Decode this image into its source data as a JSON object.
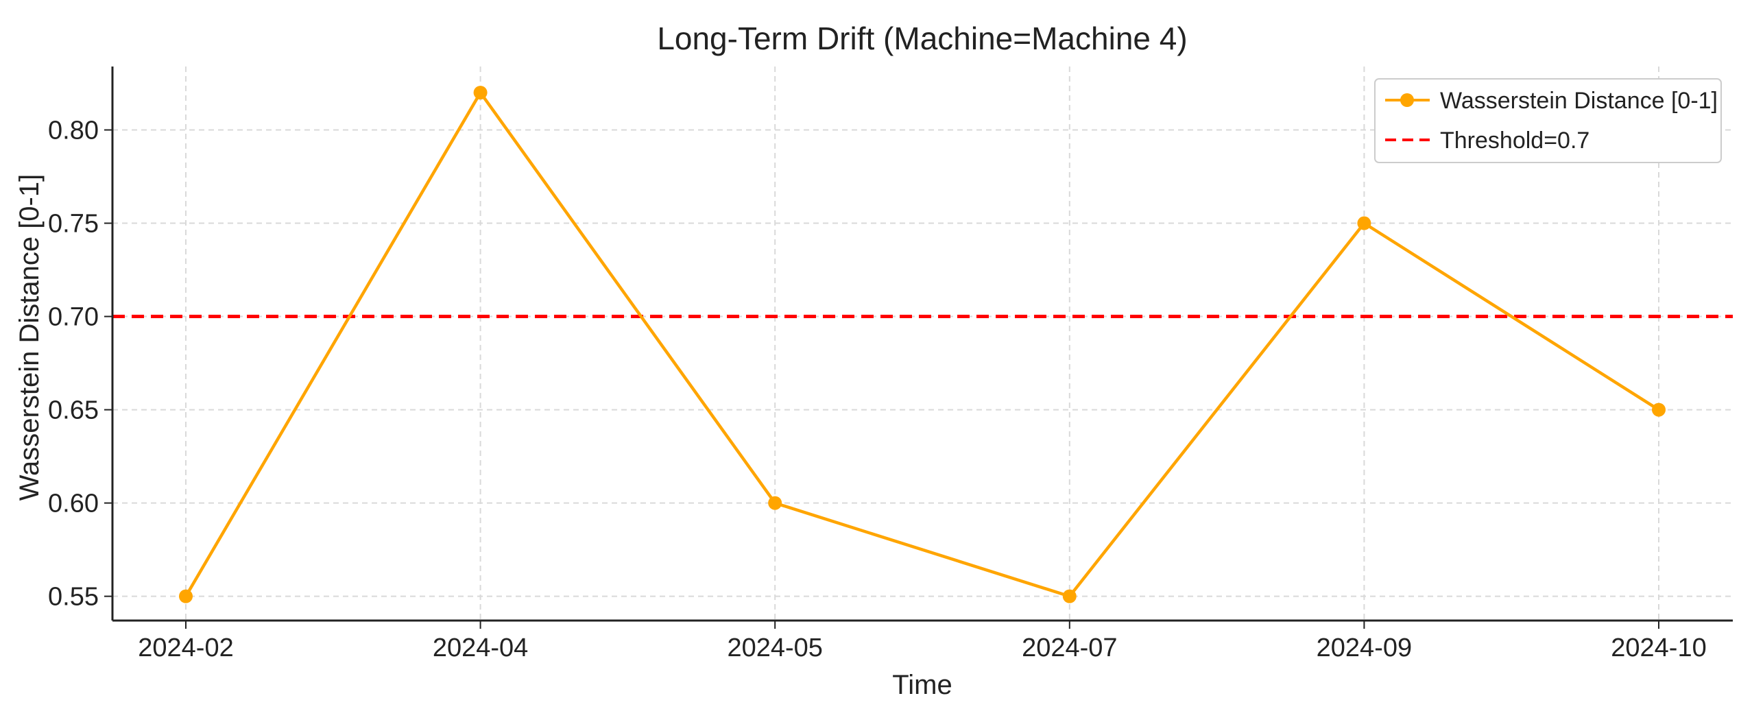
{
  "chart_data": {
    "type": "line",
    "title": "Long-Term Drift (Machine=Machine 4)",
    "xlabel": "Time",
    "ylabel": "Wasserstein Distance [0-1]",
    "categories": [
      "2024-02",
      "2024-04",
      "2024-05",
      "2024-07",
      "2024-09",
      "2024-10"
    ],
    "series": [
      {
        "name": "Wasserstein Distance [0-1]",
        "values": [
          0.55,
          0.82,
          0.6,
          0.55,
          0.75,
          0.65
        ],
        "color": "#FFA500",
        "marker": "circle"
      }
    ],
    "threshold": {
      "label": "Threshold=0.7",
      "value": 0.7,
      "color": "#FF0000",
      "style": "dashed"
    },
    "yticks": [
      0.55,
      0.6,
      0.65,
      0.7,
      0.75,
      0.8
    ],
    "ytick_labels": [
      "0.55",
      "0.60",
      "0.65",
      "0.70",
      "0.75",
      "0.80"
    ],
    "ylim": [
      0.537,
      0.834
    ],
    "grid": true,
    "legend_position": "top-right"
  }
}
